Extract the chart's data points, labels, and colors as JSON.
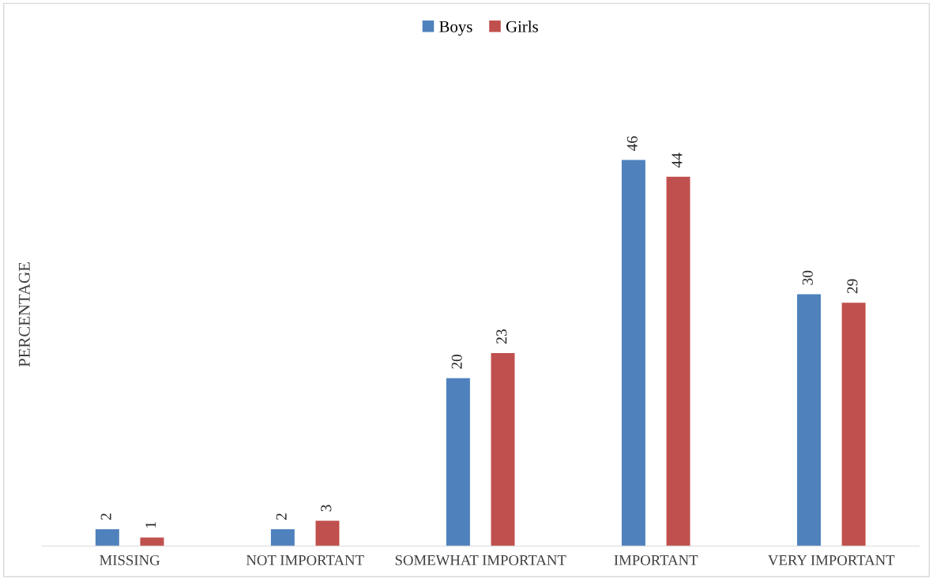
{
  "chart_data": {
    "type": "bar",
    "ylabel": "PERCENTAGE",
    "categories": [
      "MISSING",
      "NOT IMPORTANT",
      "SOMEWHAT IMPORTANT",
      "IMPORTANT",
      "VERY IMPORTANT"
    ],
    "series": [
      {
        "name": "Boys",
        "color": "#4f81bd",
        "values": [
          2,
          2,
          20,
          46,
          30
        ]
      },
      {
        "name": "Girls",
        "color": "#c0504d",
        "values": [
          1,
          3,
          23,
          44,
          29
        ]
      }
    ],
    "data_labels": true,
    "legend": "top"
  }
}
